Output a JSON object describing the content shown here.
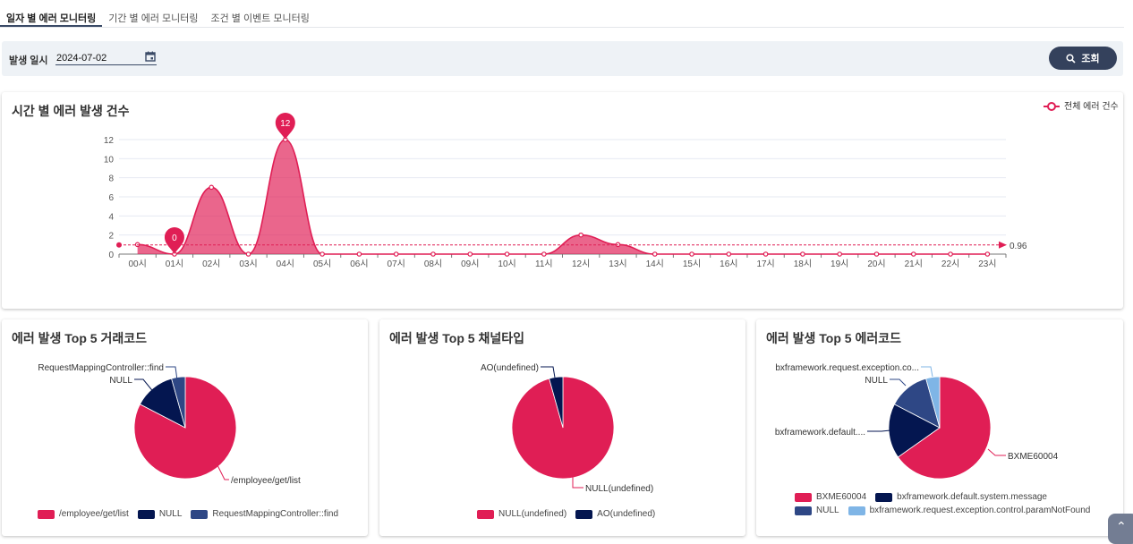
{
  "tabs": [
    {
      "label": "일자 별 에러 모니터링",
      "active": true
    },
    {
      "label": "기간 별 에러 모니터링",
      "active": false
    },
    {
      "label": "조건 별 이벤트 모니터링",
      "active": false
    }
  ],
  "filter": {
    "label": "발생 일시",
    "date": "2024-07-02",
    "search_label": "조회",
    "search_icon": "search-icon",
    "calendar_icon": "calendar-icon"
  },
  "hourly": {
    "title": "시간 별 에러 발생 건수",
    "legend": "전체 에러 건수",
    "color": "#e01e55",
    "chart_data": {
      "type": "area",
      "categories": [
        "00시",
        "01시",
        "02시",
        "03시",
        "04시",
        "05시",
        "06시",
        "07시",
        "08시",
        "09시",
        "10시",
        "11시",
        "12시",
        "13시",
        "14시",
        "15시",
        "16시",
        "17시",
        "18시",
        "19시",
        "20시",
        "21시",
        "22시",
        "23시"
      ],
      "values": [
        1,
        0,
        7,
        0,
        12,
        0,
        0,
        0,
        0,
        0,
        0,
        0,
        2,
        1,
        0,
        0,
        0,
        0,
        0,
        0,
        0,
        0,
        0,
        0
      ],
      "yticks": [
        0,
        2,
        4,
        6,
        8,
        10,
        12
      ],
      "ylim": [
        0,
        12
      ],
      "grid": true,
      "legend_placement": "top-right",
      "markpoints": [
        {
          "label": "12",
          "category": "04시",
          "value": 12
        },
        {
          "label": "0",
          "category": "01시",
          "value": 0
        }
      ],
      "markline": {
        "type": "average",
        "value": 0.96,
        "label": "0.96"
      }
    }
  },
  "pies": [
    {
      "title": "에러 발생 Top 5 거래코드",
      "chart_data": {
        "type": "pie",
        "slices": [
          {
            "name": "/employee/get/list",
            "value": 19,
            "color": "#e01e55"
          },
          {
            "name": "NULL",
            "value": 3,
            "color": "#041650"
          },
          {
            "name": "RequestMappingController::find",
            "value": 1,
            "color": "#2e4785"
          }
        ]
      }
    },
    {
      "title": "에러 발생 Top 5 채널타입",
      "chart_data": {
        "type": "pie",
        "slices": [
          {
            "name": "NULL(undefined)",
            "value": 22,
            "color": "#e01e55"
          },
          {
            "name": "AO(undefined)",
            "value": 1,
            "color": "#041650"
          }
        ]
      }
    },
    {
      "title": "에러 발생 Top 5 에러코드",
      "chart_data": {
        "type": "pie",
        "slices": [
          {
            "name": "BXME60004",
            "label": "BXME60004",
            "value": 15,
            "color": "#e01e55"
          },
          {
            "name": "bxframework.default.system.message",
            "label": "bxframework.default....",
            "value": 4,
            "color": "#041650"
          },
          {
            "name": "NULL",
            "label": "NULL",
            "value": 3,
            "color": "#2e4785"
          },
          {
            "name": "bxframework.request.exception.control.paramNotFound",
            "label": "bxframework.request.exception.co...",
            "value": 1,
            "color": "#7fb5e6"
          }
        ]
      }
    }
  ]
}
